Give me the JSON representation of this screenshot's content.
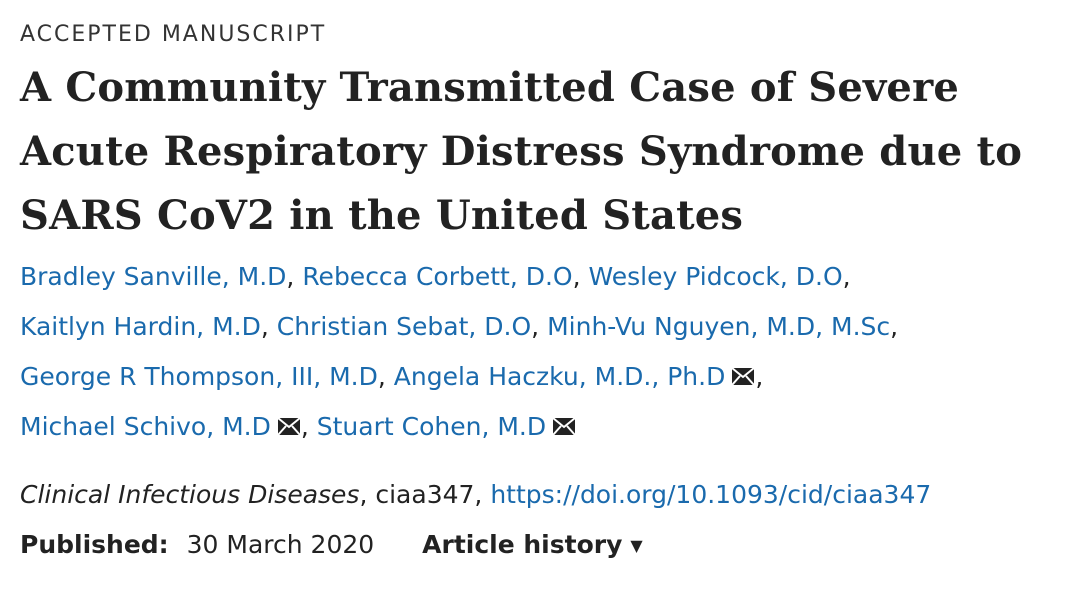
{
  "label": "ACCEPTED MANUSCRIPT",
  "title": "A Community Transmitted Case of Severe Acute Respiratory Distress Syndrome due to SARS CoV2 in the United States",
  "authors": [
    {
      "name": "Bradley Sanville, M.D",
      "mail": false
    },
    {
      "name": "Rebecca Corbett, D.O",
      "mail": false
    },
    {
      "name": "Wesley Pidcock, D.O",
      "mail": false
    },
    {
      "name": "Kaitlyn Hardin, M.D",
      "mail": false
    },
    {
      "name": "Christian Sebat, D.O",
      "mail": false
    },
    {
      "name": "Minh-Vu Nguyen, M.D, M.Sc",
      "mail": false
    },
    {
      "name": "George R Thompson, III, M.D",
      "mail": false
    },
    {
      "name": "Angela Haczku, M.D., Ph.D",
      "mail": true
    },
    {
      "name": "Michael Schivo, M.D",
      "mail": true
    },
    {
      "name": "Stuart Cohen, M.D",
      "mail": true
    }
  ],
  "citation": {
    "journal": "Clinical Infectious Diseases",
    "article_id": "ciaa347",
    "doi": "https://doi.org/10.1093/cid/ciaa347"
  },
  "published": {
    "label": "Published:",
    "date": "30 March 2020"
  },
  "history": {
    "label": "Article history",
    "caret": "▼"
  },
  "colors": {
    "link": "#1a6aad",
    "text": "#222222"
  },
  "icons": {
    "mail": "envelope-icon"
  }
}
